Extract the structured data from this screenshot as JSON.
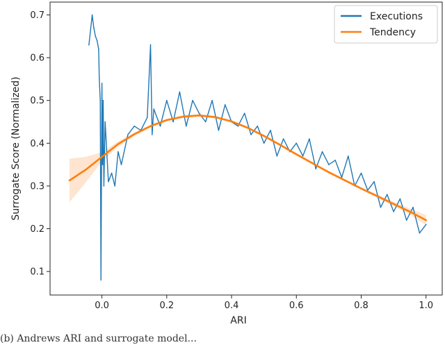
{
  "chart_data": {
    "type": "line",
    "title": "",
    "xlabel": "ARI",
    "ylabel": "Surrogate Score (Normalized)",
    "xlim": [
      -0.16,
      1.05
    ],
    "ylim": [
      0.045,
      0.73
    ],
    "x_ticks": [
      0.0,
      0.2,
      0.4,
      0.6,
      0.8,
      1.0
    ],
    "x_tick_labels": [
      "0.0",
      "0.2",
      "0.4",
      "0.6",
      "0.8",
      "1.0"
    ],
    "y_ticks": [
      0.1,
      0.2,
      0.3,
      0.4,
      0.5,
      0.6,
      0.7
    ],
    "y_tick_labels": [
      "0.1",
      "0.2",
      "0.3",
      "0.4",
      "0.5",
      "0.6",
      "0.7"
    ],
    "grid": false,
    "legend_position": "top-right",
    "series": [
      {
        "name": "Executions",
        "color": "#1f77b4",
        "x": [
          -0.04,
          -0.03,
          -0.025,
          -0.02,
          -0.015,
          -0.01,
          -0.008,
          -0.005,
          -0.003,
          0.0,
          0.002,
          0.004,
          0.006,
          0.01,
          0.02,
          0.03,
          0.04,
          0.05,
          0.06,
          0.08,
          0.1,
          0.12,
          0.14,
          0.15,
          0.155,
          0.16,
          0.18,
          0.2,
          0.22,
          0.24,
          0.26,
          0.28,
          0.3,
          0.32,
          0.34,
          0.36,
          0.38,
          0.4,
          0.42,
          0.44,
          0.46,
          0.48,
          0.5,
          0.52,
          0.54,
          0.56,
          0.58,
          0.6,
          0.62,
          0.64,
          0.66,
          0.68,
          0.7,
          0.72,
          0.74,
          0.76,
          0.78,
          0.8,
          0.82,
          0.84,
          0.86,
          0.88,
          0.9,
          0.92,
          0.94,
          0.96,
          0.98,
          1.0
        ],
        "y": [
          0.63,
          0.7,
          0.67,
          0.65,
          0.64,
          0.62,
          0.55,
          0.5,
          0.08,
          0.54,
          0.35,
          0.5,
          0.3,
          0.45,
          0.31,
          0.33,
          0.3,
          0.38,
          0.35,
          0.42,
          0.44,
          0.43,
          0.46,
          0.63,
          0.42,
          0.48,
          0.44,
          0.5,
          0.45,
          0.52,
          0.44,
          0.5,
          0.47,
          0.45,
          0.5,
          0.43,
          0.49,
          0.45,
          0.44,
          0.47,
          0.42,
          0.44,
          0.4,
          0.43,
          0.37,
          0.41,
          0.38,
          0.4,
          0.37,
          0.41,
          0.34,
          0.38,
          0.35,
          0.36,
          0.32,
          0.37,
          0.3,
          0.33,
          0.29,
          0.31,
          0.25,
          0.28,
          0.24,
          0.27,
          0.22,
          0.25,
          0.19,
          0.21
        ]
      },
      {
        "name": "Tendency",
        "color": "#ff7f0e",
        "x": [
          -0.1,
          -0.05,
          0.0,
          0.05,
          0.1,
          0.15,
          0.2,
          0.25,
          0.3,
          0.35,
          0.4,
          0.45,
          0.5,
          0.55,
          0.6,
          0.65,
          0.7,
          0.75,
          0.8,
          0.85,
          0.9,
          0.95,
          1.0
        ],
        "y": [
          0.313,
          0.338,
          0.368,
          0.398,
          0.421,
          0.44,
          0.454,
          0.462,
          0.465,
          0.461,
          0.451,
          0.436,
          0.417,
          0.396,
          0.374,
          0.353,
          0.332,
          0.313,
          0.294,
          0.276,
          0.258,
          0.24,
          0.22
        ],
        "band_lower": [
          0.262,
          0.308,
          0.357,
          0.392,
          0.417,
          0.437,
          0.451,
          0.459,
          0.462,
          0.458,
          0.448,
          0.433,
          0.414,
          0.393,
          0.371,
          0.35,
          0.329,
          0.31,
          0.291,
          0.272,
          0.253,
          0.233,
          0.208
        ],
        "band_upper": [
          0.364,
          0.368,
          0.379,
          0.404,
          0.425,
          0.443,
          0.457,
          0.465,
          0.468,
          0.464,
          0.454,
          0.439,
          0.42,
          0.399,
          0.377,
          0.356,
          0.335,
          0.316,
          0.297,
          0.28,
          0.263,
          0.247,
          0.232
        ]
      }
    ]
  },
  "caption_text": "(b) Andrews ARI and surrogate model..."
}
